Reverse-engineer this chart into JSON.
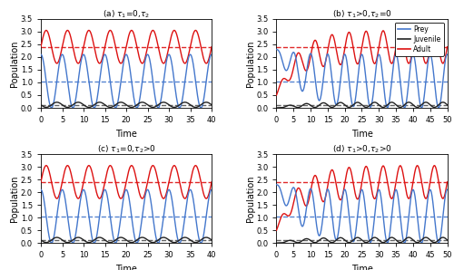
{
  "subplots": [
    {
      "title": "(a) $\\tau_1$=0,$\\tau_2$",
      "xlim": [
        0,
        40
      ],
      "ylim": [
        0,
        3.5
      ],
      "yticks": [
        0,
        0.5,
        1.0,
        1.5,
        2.0,
        2.5,
        3.0,
        3.5
      ],
      "xticks": [
        0,
        5,
        10,
        15,
        20,
        25,
        30,
        35,
        40
      ],
      "show_legend": false,
      "transient": false,
      "period": 5.0,
      "prey_mean": 1.05,
      "prey_amp": 1.05,
      "prey_phase": 1.57,
      "adult_mean": 2.4,
      "adult_amp": 0.65,
      "adult_phase": 0.0,
      "juv_mean": 0.12,
      "juv_amp": 0.1,
      "juv_phase": 3.14,
      "prey_eq": 1.05,
      "adult_eq": 2.4,
      "juv_eq": 0.12
    },
    {
      "title": "(b) $\\tau_1$>0,$\\tau_2$=0",
      "xlim": [
        0,
        50
      ],
      "ylim": [
        0,
        3.5
      ],
      "yticks": [
        0,
        0.5,
        1.0,
        1.5,
        2.0,
        2.5,
        3.0,
        3.5
      ],
      "xticks": [
        0,
        5,
        10,
        15,
        20,
        25,
        30,
        35,
        40,
        45,
        50
      ],
      "show_legend": true,
      "transient": true,
      "period": 5.0,
      "prey_mean": 1.05,
      "prey_amp": 1.05,
      "prey_phase": 1.57,
      "adult_mean": 2.4,
      "adult_amp": 0.65,
      "adult_phase": 0.0,
      "juv_mean": 0.12,
      "juv_amp": 0.1,
      "juv_phase": 3.14,
      "prey_eq": 1.05,
      "adult_eq": 2.4,
      "juv_eq": 0.12,
      "prey_init": 2.3,
      "adult_init": 0.5,
      "juv_init": 0.0,
      "tau_grow": 6.0
    },
    {
      "title": "(c) $\\tau_1$=0,$\\tau_2$>0",
      "xlim": [
        0,
        40
      ],
      "ylim": [
        0,
        3.5
      ],
      "yticks": [
        0,
        0.5,
        1.0,
        1.5,
        2.0,
        2.5,
        3.0,
        3.5
      ],
      "xticks": [
        0,
        5,
        10,
        15,
        20,
        25,
        30,
        35,
        40
      ],
      "show_legend": false,
      "transient": false,
      "period": 5.0,
      "prey_mean": 1.05,
      "prey_amp": 1.05,
      "prey_phase": 1.57,
      "adult_mean": 2.4,
      "adult_amp": 0.65,
      "adult_phase": 0.0,
      "juv_mean": 0.12,
      "juv_amp": 0.1,
      "juv_phase": 3.14,
      "prey_eq": 1.05,
      "adult_eq": 2.4,
      "juv_eq": 0.12
    },
    {
      "title": "(d) $\\tau_1$>0,$\\tau_2$>0",
      "xlim": [
        0,
        50
      ],
      "ylim": [
        0,
        3.5
      ],
      "yticks": [
        0,
        0.5,
        1.0,
        1.5,
        2.0,
        2.5,
        3.0,
        3.5
      ],
      "xticks": [
        0,
        5,
        10,
        15,
        20,
        25,
        30,
        35,
        40,
        45,
        50
      ],
      "show_legend": false,
      "transient": true,
      "period": 5.0,
      "prey_mean": 1.05,
      "prey_amp": 1.05,
      "prey_phase": 1.57,
      "adult_mean": 2.4,
      "adult_amp": 0.65,
      "adult_phase": 0.0,
      "juv_mean": 0.12,
      "juv_amp": 0.1,
      "juv_phase": 3.14,
      "prey_eq": 1.05,
      "adult_eq": 2.4,
      "juv_eq": 0.12,
      "prey_init": 2.3,
      "adult_init": 0.5,
      "juv_init": 0.0,
      "tau_grow": 6.0
    }
  ],
  "color_prey": "#4477cc",
  "color_adult": "#dd1111",
  "color_juv": "#222222",
  "ylabel": "Population",
  "xlabel": "Time"
}
